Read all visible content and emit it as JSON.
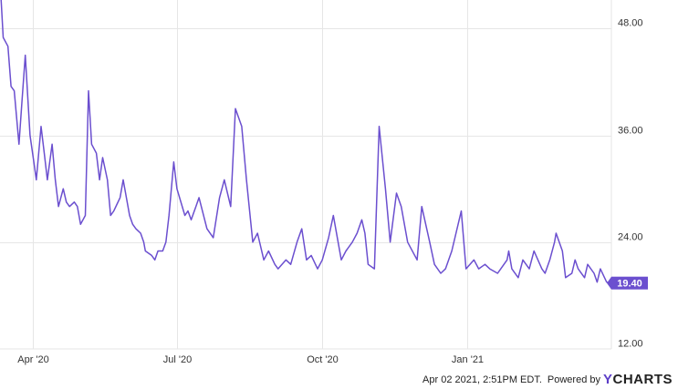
{
  "chart_data": {
    "type": "line",
    "title": "",
    "xlabel": "",
    "ylabel": "",
    "ylim": [
      12,
      51
    ],
    "y_ticks": [
      "48.00",
      "36.00",
      "24.00",
      "12.00"
    ],
    "y_tick_values": [
      48,
      36,
      24,
      12
    ],
    "x_ticks": [
      {
        "label": "Apr '20",
        "date": "2020-04-01"
      },
      {
        "label": "Jul '20",
        "date": "2020-07-01"
      },
      {
        "label": "Oct '20",
        "date": "2020-10-01"
      },
      {
        "label": "Jan '21",
        "date": "2021-01-01"
      }
    ],
    "xlim": [
      "2020-03-11",
      "2021-04-02"
    ],
    "grid": true,
    "line_color": "#6b4fcf",
    "last_value_label": "19.40",
    "series": [
      {
        "x": [
          "2020-03-11",
          "2020-03-13",
          "2020-03-16",
          "2020-03-18",
          "2020-03-20",
          "2020-03-23",
          "2020-03-25",
          "2020-03-27",
          "2020-03-30",
          "2020-04-01",
          "2020-04-03",
          "2020-04-06",
          "2020-04-08",
          "2020-04-10",
          "2020-04-13",
          "2020-04-15",
          "2020-04-17",
          "2020-04-20",
          "2020-04-22",
          "2020-04-24",
          "2020-04-27",
          "2020-04-29",
          "2020-05-01",
          "2020-05-04",
          "2020-05-06",
          "2020-05-08",
          "2020-05-11",
          "2020-05-13",
          "2020-05-15",
          "2020-05-18",
          "2020-05-20",
          "2020-05-22",
          "2020-05-26",
          "2020-05-28",
          "2020-06-01",
          "2020-06-03",
          "2020-06-05",
          "2020-06-08",
          "2020-06-10",
          "2020-06-11",
          "2020-06-15",
          "2020-06-17",
          "2020-06-19",
          "2020-06-22",
          "2020-06-24",
          "2020-06-26",
          "2020-06-29",
          "2020-07-01",
          "2020-07-06",
          "2020-07-08",
          "2020-07-10",
          "2020-07-13",
          "2020-07-15",
          "2020-07-20",
          "2020-07-24",
          "2020-07-28",
          "2020-07-31",
          "2020-08-04",
          "2020-08-07",
          "2020-08-11",
          "2020-08-14",
          "2020-08-18",
          "2020-08-21",
          "2020-08-25",
          "2020-08-28",
          "2020-09-01",
          "2020-09-03",
          "2020-09-08",
          "2020-09-11",
          "2020-09-15",
          "2020-09-18",
          "2020-09-21",
          "2020-09-24",
          "2020-09-28",
          "2020-10-01",
          "2020-10-05",
          "2020-10-08",
          "2020-10-13",
          "2020-10-16",
          "2020-10-20",
          "2020-10-23",
          "2020-10-26",
          "2020-10-28",
          "2020-10-30",
          "2020-11-03",
          "2020-11-06",
          "2020-11-10",
          "2020-11-13",
          "2020-11-17",
          "2020-11-20",
          "2020-11-24",
          "2020-11-30",
          "2020-12-03",
          "2020-12-08",
          "2020-12-11",
          "2020-12-15",
          "2020-12-18",
          "2020-12-22",
          "2020-12-28",
          "2020-12-31",
          "2021-01-05",
          "2021-01-08",
          "2021-01-12",
          "2021-01-15",
          "2021-01-20",
          "2021-01-22",
          "2021-01-26",
          "2021-01-27",
          "2021-01-29",
          "2021-02-02",
          "2021-02-05",
          "2021-02-09",
          "2021-02-12",
          "2021-02-17",
          "2021-02-19",
          "2021-02-22",
          "2021-02-25",
          "2021-02-26",
          "2021-03-02",
          "2021-03-04",
          "2021-03-08",
          "2021-03-10",
          "2021-03-12",
          "2021-03-16",
          "2021-03-18",
          "2021-03-22",
          "2021-03-24",
          "2021-03-26",
          "2021-03-30",
          "2021-04-01"
        ],
        "y": [
          53.5,
          47.0,
          46.0,
          41.5,
          41.0,
          35.0,
          40.0,
          45.0,
          36.0,
          33.5,
          31.0,
          37.0,
          34.0,
          31.0,
          35.0,
          31.0,
          28.0,
          30.0,
          28.5,
          28.0,
          28.5,
          28.0,
          26.0,
          27.0,
          41.0,
          35.0,
          34.0,
          31.0,
          33.5,
          31.0,
          27.0,
          27.5,
          29.0,
          31.0,
          27.0,
          26.0,
          25.5,
          25.0,
          24.0,
          23.0,
          22.5,
          22.0,
          23.0,
          23.0,
          24.0,
          27.0,
          33.0,
          30.0,
          27.0,
          27.5,
          26.5,
          28.0,
          29.0,
          25.5,
          24.5,
          29.0,
          31.0,
          28.0,
          39.0,
          37.0,
          31.0,
          24.0,
          25.0,
          22.0,
          23.0,
          21.5,
          21.0,
          22.0,
          21.5,
          24.0,
          25.5,
          22.0,
          22.5,
          21.0,
          22.0,
          24.5,
          27.0,
          22.0,
          23.0,
          24.0,
          25.0,
          26.5,
          25.0,
          21.5,
          21.0,
          37.0,
          30.0,
          24.0,
          29.5,
          28.0,
          24.0,
          22.0,
          28.0,
          24.0,
          21.5,
          20.5,
          21.0,
          23.0,
          27.5,
          21.0,
          22.0,
          21.0,
          21.5,
          21.0,
          20.5,
          21.0,
          22.0,
          23.0,
          21.0,
          20.0,
          22.0,
          21.0,
          23.0,
          21.0,
          20.5,
          22.0,
          24.0,
          25.0,
          23.0,
          20.0,
          20.5,
          22.0,
          21.0,
          20.0,
          21.5,
          20.5,
          19.5,
          21.0,
          19.5,
          19.4
        ]
      }
    ]
  },
  "footer": {
    "timestamp": "Apr 02 2021, 2:51PM EDT.",
    "powered_by": "Powered by",
    "logo_y": "Y",
    "logo_rest": "CHARTS"
  }
}
